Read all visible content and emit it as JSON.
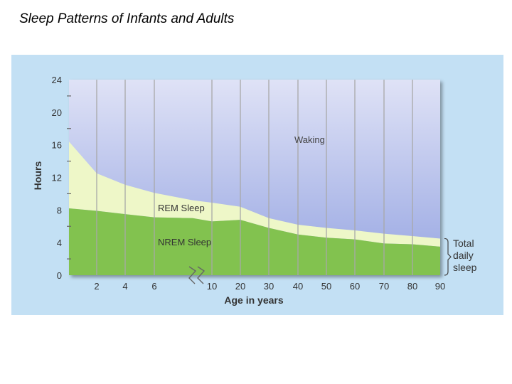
{
  "slide": {
    "title": "Sleep Patterns of Infants and Adults"
  },
  "chart_data": {
    "type": "area",
    "title": "",
    "xlabel": "Age in years",
    "ylabel": "Hours",
    "ylim": [
      0,
      24
    ],
    "y_ticks": [
      "0",
      "4",
      "8",
      "12",
      "16",
      "20",
      "24"
    ],
    "x_tick_labels": [
      "2",
      "4",
      "6",
      "10",
      "20",
      "30",
      "40",
      "50",
      "60",
      "70",
      "80",
      "90"
    ],
    "x_axis_break_after": "6",
    "grid": true,
    "x": [
      "1",
      "2",
      "4",
      "6",
      "7",
      "10",
      "20",
      "30",
      "40",
      "50",
      "60",
      "70",
      "80",
      "90"
    ],
    "series": [
      {
        "name": "NREM Sleep",
        "values": [
          8.2,
          7.9,
          7.5,
          7.1,
          7.0,
          6.6,
          6.8,
          5.8,
          5.0,
          4.6,
          4.4,
          3.9,
          3.8,
          3.5
        ]
      },
      {
        "name": "REM Sleep",
        "values": [
          8.2,
          4.6,
          3.6,
          3.0,
          2.2,
          2.3,
          1.6,
          1.2,
          1.2,
          1.2,
          1.1,
          1.2,
          1.0,
          1.0
        ]
      },
      {
        "name": "Waking",
        "values": [
          7.6,
          11.5,
          12.9,
          13.9,
          14.8,
          15.1,
          15.6,
          17.0,
          17.8,
          18.2,
          18.5,
          18.9,
          19.2,
          19.5
        ]
      }
    ],
    "annotation": "Total daily sleep",
    "colors": {
      "waking": "#9aa8e2",
      "rem": "#eef7c8",
      "nrem": "#82c250",
      "background": "#c3e0f4"
    }
  }
}
